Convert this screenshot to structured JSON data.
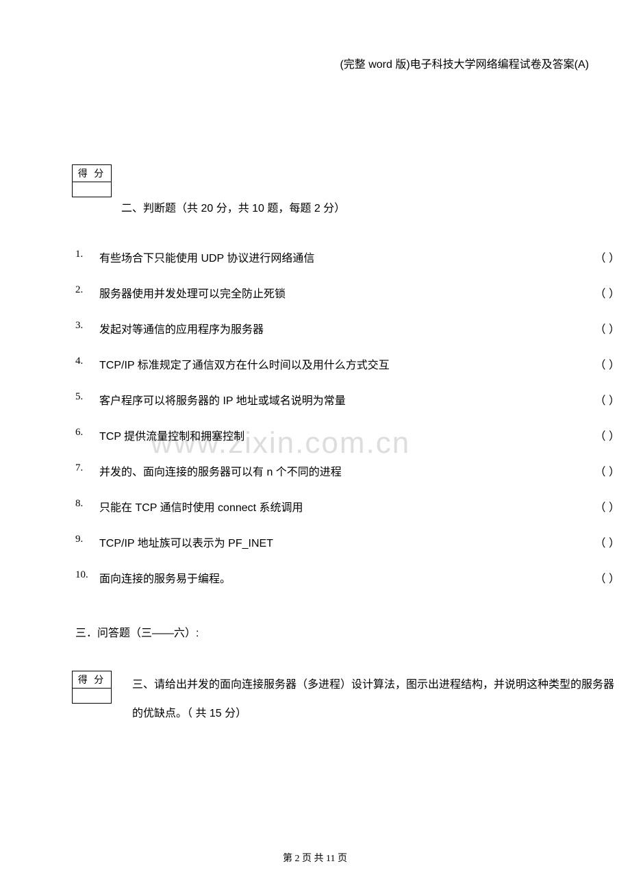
{
  "header": {
    "title": "(完整 word 版)电子科技大学网络编程试卷及答案(A)"
  },
  "scoreBox": {
    "label": "得 分"
  },
  "section2": {
    "title": "二、判断题（共 20 分，共 10 题，每题 2 分）",
    "paren": "（  ）",
    "questions": [
      {
        "num": "1.",
        "text": "有些场合下只能使用 UDP 协议进行网络通信"
      },
      {
        "num": "2.",
        "text": "服务器使用并发处理可以完全防止死锁"
      },
      {
        "num": "3.",
        "text": "发起对等通信的应用程序为服务器"
      },
      {
        "num": "4.",
        "text": "TCP/IP 标准规定了通信双方在什么时间以及用什么方式交互"
      },
      {
        "num": "5.",
        "text": "客户程序可以将服务器的 IP 地址或域名说明为常量"
      },
      {
        "num": "6.",
        "text": "TCP 提供流量控制和拥塞控制"
      },
      {
        "num": "7.",
        "text": "并发的、面向连接的服务器可以有 n 个不同的进程"
      },
      {
        "num": "8.",
        "text": "只能在 TCP 通信时使用 connect 系统调用"
      },
      {
        "num": "9.",
        "text": "TCP/IP 地址族可以表示为 PF_INET"
      },
      {
        "num": "10.",
        "text": "面向连接的服务易于编程。"
      }
    ]
  },
  "section3": {
    "heading": "三．问答题（三——六）:",
    "title": "三、请给出并发的面向连接服务器（多进程）设计算法，图示出进程结构，并说明这种类型的服务器的优缺点。（ 共 15 分）"
  },
  "watermark": {
    "text": "www.zixin.com.cn"
  },
  "footer": {
    "text": "第 2 页 共 11 页"
  }
}
